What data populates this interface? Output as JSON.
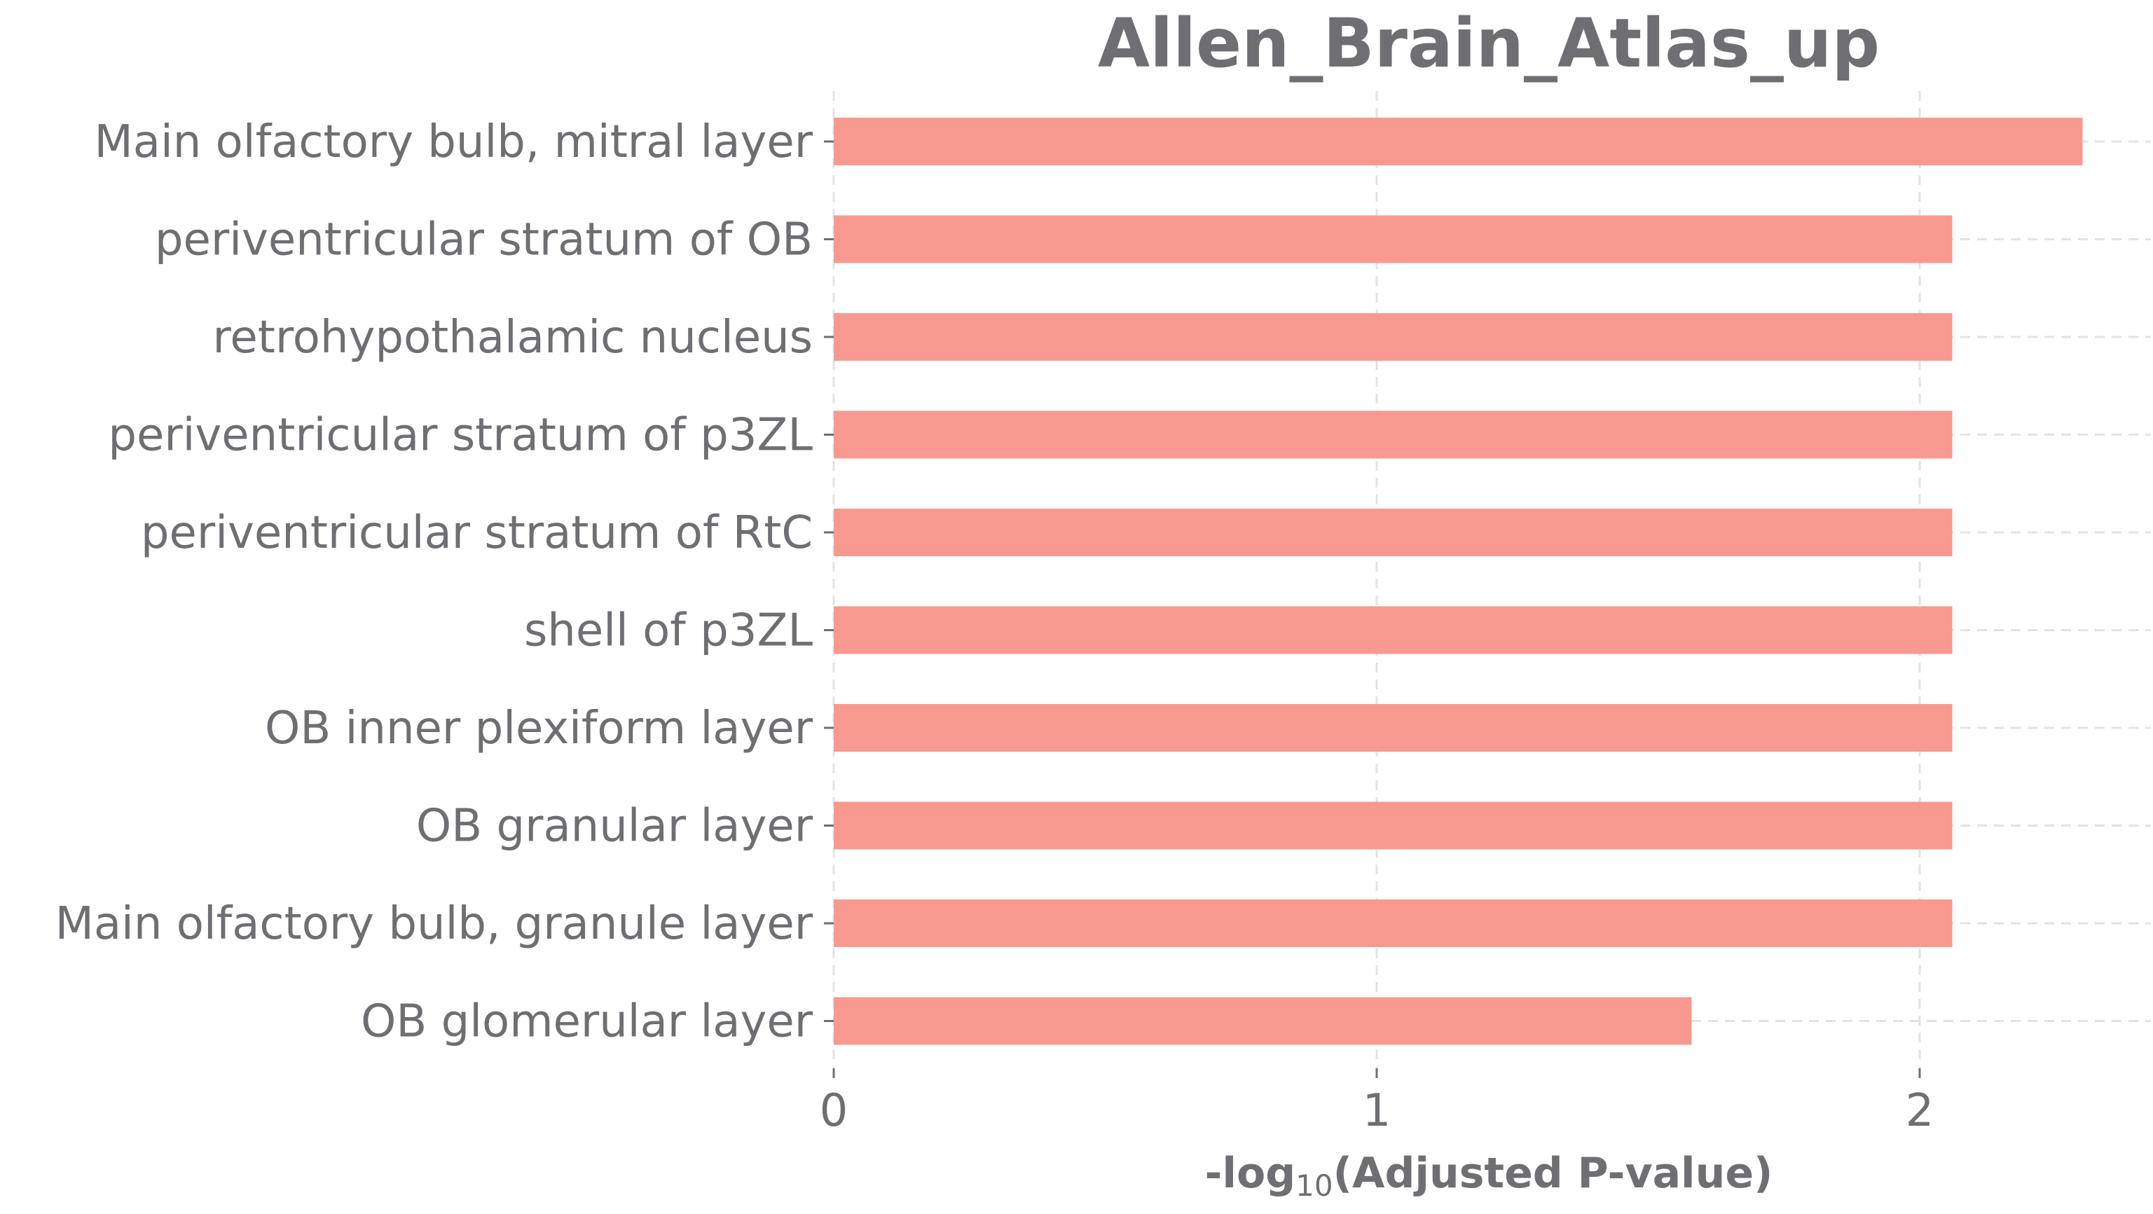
{
  "chart_data": {
    "type": "bar",
    "orientation": "horizontal",
    "title": "Allen_Brain_Atlas_up",
    "xlabel_prefix": "-log",
    "xlabel_subscript": "10",
    "xlabel_suffix": "(Adjusted P-value)",
    "ylabel": "",
    "categories": [
      "Main olfactory bulb, mitral layer",
      "periventricular stratum of OB",
      "retrohypothalamic nucleus",
      "periventricular stratum of p3ZL",
      "periventricular stratum of RtC",
      "shell of p3ZL",
      "OB inner plexiform layer",
      "OB granular layer",
      "Main olfactory bulb, granule layer",
      "OB glomerular layer"
    ],
    "values": [
      2.3,
      2.06,
      2.06,
      2.06,
      2.06,
      2.06,
      2.06,
      2.06,
      2.06,
      1.58
    ],
    "xlim": [
      0,
      2.4
    ],
    "xticks": [
      0,
      1,
      2
    ],
    "grid": true,
    "legend": "none",
    "colors": {
      "bar": "#f8998f",
      "text": "#6e6e73",
      "grid": "#e3e3e3"
    }
  }
}
